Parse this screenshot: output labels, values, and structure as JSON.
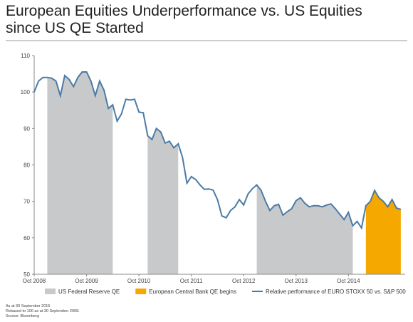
{
  "chart_data": {
    "type": "line",
    "title_lines": [
      "European Equities Underperformance vs. US Equities",
      "since US QE Started"
    ],
    "x": [
      0,
      1,
      2,
      3,
      4,
      5,
      6,
      7,
      8,
      9,
      10,
      11,
      12,
      13,
      14,
      15,
      16,
      17,
      18,
      19,
      20,
      21,
      22,
      23,
      24,
      25,
      26,
      27,
      28,
      29,
      30,
      31,
      32,
      33,
      34,
      35,
      36,
      37,
      38,
      39,
      40,
      41,
      42,
      43,
      44,
      45,
      46,
      47,
      48,
      49,
      50,
      51,
      52,
      53,
      54,
      55,
      56,
      57,
      58,
      59,
      60,
      61,
      62,
      63,
      64,
      65,
      66,
      67,
      68,
      69,
      70,
      71,
      72,
      73,
      74,
      75,
      76,
      77,
      78,
      79,
      80,
      81,
      82,
      83,
      84
    ],
    "series": [
      {
        "name": "Relative performance of EURO STOXX 50 vs. S&P 500",
        "color": "#4a7ba6",
        "values": [
          100,
          103,
          104,
          104,
          103.8,
          103,
          99,
          104.5,
          103.5,
          101.5,
          104,
          105.5,
          105.5,
          103,
          99,
          103,
          100.5,
          95.5,
          96.5,
          92,
          94,
          98,
          97.8,
          98,
          94.5,
          94.3,
          88,
          87,
          90,
          89,
          86,
          86.5,
          84.7,
          85.8,
          82,
          75,
          76.8,
          76,
          74.5,
          73.3,
          73.4,
          73.1,
          70.5,
          66,
          65.5,
          67.5,
          68.5,
          70.5,
          69,
          72,
          73.5,
          74.5,
          73,
          70,
          67.5,
          68.8,
          69.2,
          66.2,
          67.2,
          68,
          70.2,
          71,
          69.5,
          68.5,
          68.8,
          68.8,
          68.5,
          69,
          69.3,
          68,
          66.5,
          65,
          67,
          63.3,
          64.5,
          62.7,
          68.8,
          70,
          73,
          71,
          70,
          68.5,
          70.5,
          68.2,
          67.8
        ]
      }
    ],
    "shaded": [
      {
        "name": "US Federal Reserve QE",
        "color": "#c8c9cb",
        "ranges": [
          [
            3,
            18
          ],
          [
            26,
            33
          ],
          [
            51,
            73
          ]
        ]
      },
      {
        "name": "European Central Bank QE begins",
        "color": "#f5a800",
        "ranges": [
          [
            76,
            84
          ]
        ]
      }
    ],
    "xlim": [
      0,
      85
    ],
    "xticks": [
      {
        "value": 0,
        "label": "Oct 2008"
      },
      {
        "value": 12,
        "label": "Oct 2009"
      },
      {
        "value": 24,
        "label": "Oct 2010"
      },
      {
        "value": 36,
        "label": "Oct 2011"
      },
      {
        "value": 48,
        "label": "Oct 2012"
      },
      {
        "value": 60,
        "label": "Oct 2013"
      },
      {
        "value": 72,
        "label": "Oct 2014"
      }
    ],
    "ylim": [
      50,
      110
    ],
    "yticks": [
      50,
      60,
      70,
      80,
      90,
      100,
      110
    ],
    "notes": [
      "As at 30 September 2015",
      "Rebased to 100 as at 30 September 2008.",
      "Source: Bloomberg"
    ]
  }
}
